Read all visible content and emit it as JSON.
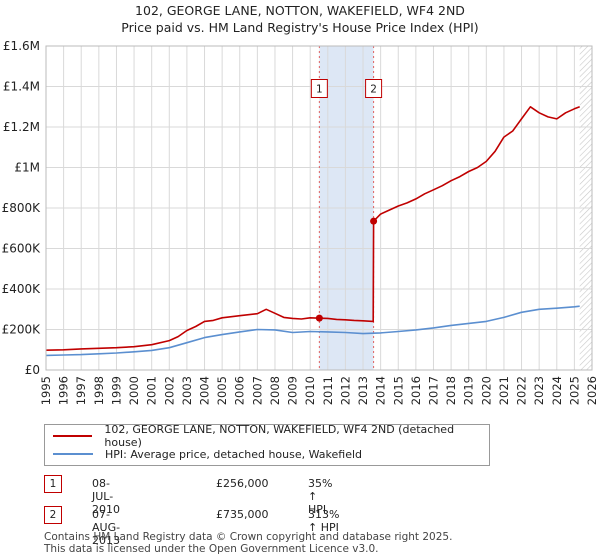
{
  "title_line1": "102, GEORGE LANE, NOTTON, WAKEFIELD, WF4 2ND",
  "title_line2": "Price paid vs. HM Land Registry's House Price Index (HPI)",
  "chart_data": {
    "type": "line",
    "ylim": [
      0,
      1600000
    ],
    "xlim": [
      1995,
      2026
    ],
    "y_ticks": [
      {
        "value": 0,
        "label": "£0"
      },
      {
        "value": 200000,
        "label": "£200K"
      },
      {
        "value": 400000,
        "label": "£400K"
      },
      {
        "value": 600000,
        "label": "£600K"
      },
      {
        "value": 800000,
        "label": "£800K"
      },
      {
        "value": 1000000,
        "label": "£1M"
      },
      {
        "value": 1200000,
        "label": "£1.2M"
      },
      {
        "value": 1400000,
        "label": "£1.4M"
      },
      {
        "value": 1600000,
        "label": "£1.6M"
      }
    ],
    "x_ticks": [
      "1995",
      "1996",
      "1997",
      "1998",
      "1999",
      "2000",
      "2001",
      "2002",
      "2003",
      "2004",
      "2005",
      "2006",
      "2007",
      "2008",
      "2009",
      "2010",
      "2011",
      "2012",
      "2013",
      "2014",
      "2015",
      "2016",
      "2017",
      "2018",
      "2019",
      "2020",
      "2021",
      "2022",
      "2023",
      "2024",
      "2025",
      "2026"
    ],
    "grid": true,
    "shaded_range": [
      2010.52,
      2013.6
    ],
    "hatched_after": 2025.3,
    "series": [
      {
        "name": "102, GEORGE LANE, NOTTON, WAKEFIELD, WF4 2ND (detached house)",
        "color": "#c00000",
        "x": [
          1995,
          1996,
          1997,
          1998,
          1999,
          2000,
          2001,
          2002,
          2002.5,
          2003,
          2003.5,
          2004,
          2004.5,
          2005,
          2006,
          2007,
          2007.5,
          2008,
          2008.5,
          2009,
          2009.5,
          2010,
          2010.52,
          2011,
          2011.5,
          2012,
          2012.5,
          2013,
          2013.58,
          2013.6,
          2014,
          2014.5,
          2015,
          2015.5,
          2016,
          2016.5,
          2017,
          2017.5,
          2018,
          2018.5,
          2019,
          2019.5,
          2020,
          2020.5,
          2021,
          2021.5,
          2022,
          2022.5,
          2023,
          2023.5,
          2024,
          2024.5,
          2025,
          2025.3
        ],
        "y": [
          98000,
          100000,
          104000,
          107000,
          110000,
          115000,
          125000,
          145000,
          165000,
          195000,
          215000,
          240000,
          245000,
          258000,
          268000,
          278000,
          300000,
          280000,
          260000,
          255000,
          252000,
          258000,
          256000,
          255000,
          250000,
          248000,
          245000,
          243000,
          240000,
          735000,
          770000,
          790000,
          810000,
          825000,
          845000,
          870000,
          890000,
          910000,
          935000,
          955000,
          980000,
          1000000,
          1030000,
          1080000,
          1150000,
          1180000,
          1240000,
          1300000,
          1270000,
          1250000,
          1240000,
          1270000,
          1290000,
          1300000
        ]
      },
      {
        "name": "HPI: Average price, detached house, Wakefield",
        "color": "#5b8fd0",
        "x": [
          1995,
          1996,
          1997,
          1998,
          1999,
          2000,
          2001,
          2002,
          2003,
          2004,
          2005,
          2006,
          2007,
          2008,
          2009,
          2010,
          2011,
          2012,
          2013,
          2014,
          2015,
          2016,
          2017,
          2018,
          2019,
          2020,
          2021,
          2022,
          2023,
          2024,
          2025,
          2025.3
        ],
        "y": [
          72000,
          74000,
          76000,
          80000,
          84000,
          90000,
          97000,
          110000,
          135000,
          160000,
          175000,
          188000,
          200000,
          198000,
          185000,
          190000,
          188000,
          185000,
          180000,
          183000,
          190000,
          198000,
          208000,
          220000,
          230000,
          240000,
          260000,
          285000,
          300000,
          305000,
          312000,
          315000
        ]
      }
    ],
    "sales": [
      {
        "label": "1",
        "x": 2010.52,
        "y": 256000
      },
      {
        "label": "2",
        "x": 2013.6,
        "y": 735000
      }
    ]
  },
  "legend": [
    {
      "label": "102, GEORGE LANE, NOTTON, WAKEFIELD, WF4 2ND (detached house)",
      "color": "#c00000"
    },
    {
      "label": "HPI: Average price, detached house, Wakefield",
      "color": "#5b8fd0"
    }
  ],
  "transactions": [
    {
      "num": "1",
      "date": "08-JUL-2010",
      "price": "£256,000",
      "hpi": "35% ↑ HPI"
    },
    {
      "num": "2",
      "date": "07-AUG-2013",
      "price": "£735,000",
      "hpi": "313% ↑ HPI"
    }
  ],
  "footer_line1": "Contains HM Land Registry data © Crown copyright and database right 2025.",
  "footer_line2": "This data is licensed under the Open Government Licence v3.0."
}
